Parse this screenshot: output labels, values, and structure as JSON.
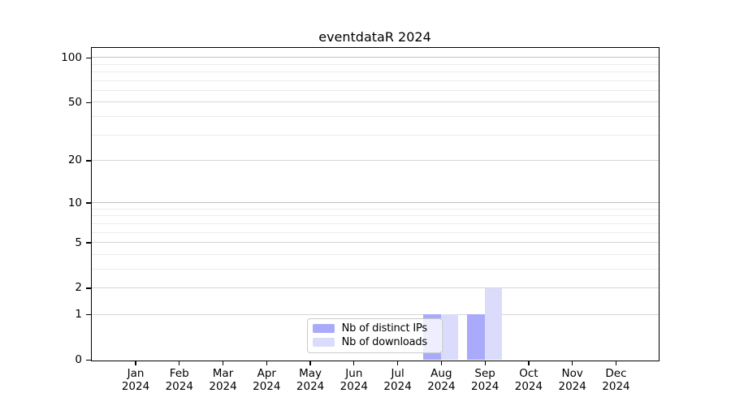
{
  "chart_data": {
    "type": "bar",
    "title": "eventdataR 2024",
    "x_year_label": "2024",
    "categories": [
      "Jan",
      "Feb",
      "Mar",
      "Apr",
      "May",
      "Jun",
      "Jul",
      "Aug",
      "Sep",
      "Oct",
      "Nov",
      "Dec"
    ],
    "series": [
      {
        "name": "Nb of distinct IPs",
        "color": "#a9abfa",
        "values": [
          0,
          0,
          0,
          0,
          0,
          0,
          0,
          1,
          1,
          0,
          0,
          0
        ]
      },
      {
        "name": "Nb of downloads",
        "color": "#dbdcfb",
        "values": [
          0,
          0,
          0,
          0,
          0,
          0,
          0,
          1,
          2,
          0,
          0,
          0
        ]
      }
    ],
    "yticks": [
      0,
      1,
      2,
      5,
      10,
      20,
      50,
      100
    ],
    "yticks_minor": [
      3,
      4,
      6,
      7,
      8,
      9,
      30,
      40,
      60,
      70,
      80,
      90
    ],
    "yscale": "log1p",
    "ylim": [
      0,
      116
    ],
    "xlabel": "",
    "ylabel": "",
    "grid": "horizontal",
    "legend_position": "inside-bottom-center",
    "axis_color": "#000000",
    "grid_color_decade": "#c2c2c2",
    "grid_color_labeled": "#d6d6d6",
    "grid_color_minor": "#ececec"
  }
}
